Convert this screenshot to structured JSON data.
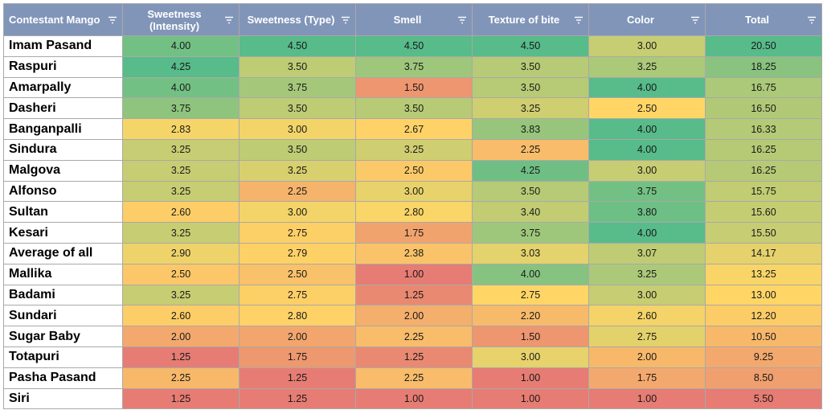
{
  "chart_data": {
    "type": "table",
    "columns": [
      "Contestant Mango",
      "Sweetness (Intensity)",
      "Sweetness (Type)",
      "Smell",
      "Texture of bite",
      "Color",
      "Total"
    ],
    "rows": [
      {
        "name": "Imam Pasand",
        "values": [
          "4.00",
          "4.50",
          "4.50",
          "4.50",
          "3.00",
          "20.50"
        ]
      },
      {
        "name": "Raspuri",
        "values": [
          "4.25",
          "3.50",
          "3.75",
          "3.50",
          "3.25",
          "18.25"
        ]
      },
      {
        "name": "Amarpally",
        "values": [
          "4.00",
          "3.75",
          "1.50",
          "3.50",
          "4.00",
          "16.75"
        ]
      },
      {
        "name": "Dasheri",
        "values": [
          "3.75",
          "3.50",
          "3.50",
          "3.25",
          "2.50",
          "16.50"
        ]
      },
      {
        "name": "Banganpalli",
        "values": [
          "2.83",
          "3.00",
          "2.67",
          "3.83",
          "4.00",
          "16.33"
        ]
      },
      {
        "name": "Sindura",
        "values": [
          "3.25",
          "3.50",
          "3.25",
          "2.25",
          "4.00",
          "16.25"
        ]
      },
      {
        "name": "Malgova",
        "values": [
          "3.25",
          "3.25",
          "2.50",
          "4.25",
          "3.00",
          "16.25"
        ]
      },
      {
        "name": "Alfonso",
        "values": [
          "3.25",
          "2.25",
          "3.00",
          "3.50",
          "3.75",
          "15.75"
        ]
      },
      {
        "name": "Sultan",
        "values": [
          "2.60",
          "3.00",
          "2.80",
          "3.40",
          "3.80",
          "15.60"
        ]
      },
      {
        "name": "Kesari",
        "values": [
          "3.25",
          "2.75",
          "1.75",
          "3.75",
          "4.00",
          "15.50"
        ]
      },
      {
        "name": "Average of all",
        "values": [
          "2.90",
          "2.79",
          "2.38",
          "3.03",
          "3.07",
          "14.17"
        ]
      },
      {
        "name": "Mallika",
        "values": [
          "2.50",
          "2.50",
          "1.00",
          "4.00",
          "3.25",
          "13.25"
        ]
      },
      {
        "name": "Badami",
        "values": [
          "3.25",
          "2.75",
          "1.25",
          "2.75",
          "3.00",
          "13.00"
        ]
      },
      {
        "name": "Sundari",
        "values": [
          "2.60",
          "2.80",
          "2.00",
          "2.20",
          "2.60",
          "12.20"
        ]
      },
      {
        "name": "Sugar Baby",
        "values": [
          "2.00",
          "2.00",
          "2.25",
          "1.50",
          "2.75",
          "10.50"
        ]
      },
      {
        "name": "Totapuri",
        "values": [
          "1.25",
          "1.75",
          "1.25",
          "3.00",
          "2.00",
          "9.25"
        ]
      },
      {
        "name": "Pasha Pasand",
        "values": [
          "2.25",
          "1.25",
          "2.25",
          "1.00",
          "1.75",
          "8.50"
        ]
      },
      {
        "name": "Siri",
        "values": [
          "1.25",
          "1.25",
          "1.00",
          "1.00",
          "1.00",
          "5.50"
        ]
      }
    ],
    "color_scale": {
      "type": "3-color per column",
      "low": "#e67c73",
      "mid": "#ffd666",
      "high": "#57bb8a"
    },
    "header_color": "#8195b9"
  },
  "header": {
    "icons": [
      "filter-icon"
    ]
  }
}
